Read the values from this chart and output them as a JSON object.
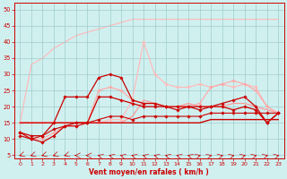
{
  "background_color": "#d0f0f0",
  "grid_color": "#a0cccc",
  "xlabel": "Vent moyen/en rafales ( km/h )",
  "xlabel_color": "#cc0000",
  "tick_color": "#cc0000",
  "xlim": [
    -0.5,
    23.5
  ],
  "ylim": [
    4,
    52
  ],
  "yticks": [
    5,
    10,
    15,
    20,
    25,
    30,
    35,
    40,
    45,
    50
  ],
  "xticks": [
    0,
    1,
    2,
    3,
    4,
    5,
    6,
    7,
    8,
    9,
    10,
    11,
    12,
    13,
    14,
    15,
    16,
    17,
    18,
    19,
    20,
    21,
    22,
    23
  ],
  "series": [
    {
      "x": [
        0,
        1,
        2,
        3,
        4,
        5,
        6,
        7,
        8,
        9,
        10,
        11,
        12,
        13,
        14,
        15,
        16,
        17,
        18,
        19,
        20,
        21,
        22,
        23
      ],
      "y": [
        15,
        33,
        35,
        38,
        40,
        42,
        43,
        44,
        45,
        46,
        47,
        47,
        47,
        47,
        47,
        47,
        47,
        47,
        47,
        47,
        47,
        47,
        47,
        47
      ],
      "color": "#ffbbbb",
      "lw": 0.9,
      "marker": null,
      "alpha": 1.0,
      "zorder": 1
    },
    {
      "x": [
        0,
        1,
        2,
        3,
        4,
        5,
        6,
        7,
        8,
        9,
        10,
        11,
        12,
        13,
        14,
        15,
        16,
        17,
        18,
        19,
        20,
        21,
        22,
        23
      ],
      "y": [
        15,
        15,
        15,
        15,
        15,
        15,
        15,
        15,
        15,
        15,
        17,
        22,
        21,
        20,
        20,
        21,
        20,
        20,
        20,
        21,
        21,
        20,
        19,
        18
      ],
      "color": "#ff9999",
      "lw": 0.9,
      "marker": null,
      "alpha": 1.0,
      "zorder": 2
    },
    {
      "x": [
        0,
        1,
        2,
        3,
        4,
        5,
        6,
        7,
        8,
        9,
        10,
        11,
        12,
        13,
        14,
        15,
        16,
        17,
        18,
        19,
        20,
        21,
        22,
        23
      ],
      "y": [
        15,
        15,
        15,
        15,
        15,
        15,
        15,
        15,
        15,
        15,
        15,
        15,
        15,
        15,
        15,
        15,
        15,
        16,
        16,
        16,
        16,
        16,
        16,
        16
      ],
      "color": "#cc0000",
      "lw": 1.0,
      "marker": null,
      "alpha": 1.0,
      "zorder": 3
    },
    {
      "x": [
        0,
        1,
        2,
        3,
        4,
        5,
        6,
        7,
        8,
        9,
        10,
        11,
        12,
        13,
        14,
        15,
        16,
        17,
        18,
        19,
        20,
        21,
        22,
        23
      ],
      "y": [
        12,
        10,
        11,
        13,
        14,
        14,
        15,
        16,
        17,
        17,
        16,
        17,
        17,
        17,
        17,
        17,
        17,
        18,
        18,
        18,
        18,
        18,
        18,
        18
      ],
      "color": "#cc0000",
      "lw": 0.8,
      "marker": "D",
      "markersize": 1.8,
      "alpha": 1.0,
      "zorder": 4
    },
    {
      "x": [
        0,
        1,
        2,
        3,
        4,
        5,
        6,
        7,
        8,
        9,
        10,
        11,
        12,
        13,
        14,
        15,
        16,
        17,
        18,
        19,
        20,
        21,
        22,
        23
      ],
      "y": [
        11,
        10,
        9,
        11,
        14,
        15,
        15,
        23,
        23,
        22,
        21,
        20,
        20,
        20,
        19,
        20,
        19,
        20,
        20,
        19,
        20,
        19,
        15,
        18
      ],
      "color": "#cc0000",
      "lw": 0.9,
      "marker": "D",
      "markersize": 1.8,
      "alpha": 1.0,
      "zorder": 5
    },
    {
      "x": [
        0,
        1,
        2,
        3,
        4,
        5,
        6,
        7,
        8,
        9,
        10,
        11,
        12,
        13,
        14,
        15,
        16,
        17,
        18,
        19,
        20,
        21,
        22,
        23
      ],
      "y": [
        12,
        11,
        11,
        15,
        23,
        23,
        23,
        29,
        30,
        29,
        22,
        21,
        21,
        20,
        20,
        20,
        20,
        20,
        21,
        22,
        23,
        20,
        15,
        18
      ],
      "color": "#cc0000",
      "lw": 0.9,
      "marker": "D",
      "markersize": 1.8,
      "alpha": 1.0,
      "zorder": 5
    },
    {
      "x": [
        0,
        1,
        2,
        3,
        4,
        5,
        6,
        7,
        8,
        9,
        10,
        11,
        12,
        13,
        14,
        15,
        16,
        17,
        18,
        19,
        20,
        21,
        22,
        23
      ],
      "y": [
        15,
        15,
        15,
        15,
        15,
        15,
        15,
        15,
        16,
        16,
        22,
        40,
        30,
        27,
        26,
        26,
        27,
        26,
        27,
        26,
        27,
        26,
        20,
        18
      ],
      "color": "#ffbbbb",
      "lw": 0.9,
      "marker": "D",
      "markersize": 1.8,
      "alpha": 1.0,
      "zorder": 2
    },
    {
      "x": [
        0,
        1,
        2,
        3,
        4,
        5,
        6,
        7,
        8,
        9,
        10,
        11,
        12,
        13,
        14,
        15,
        16,
        17,
        18,
        19,
        20,
        21,
        22,
        23
      ],
      "y": [
        12,
        10,
        10,
        12,
        14,
        14,
        15,
        25,
        26,
        25,
        22,
        21,
        21,
        20,
        20,
        20,
        21,
        26,
        27,
        28,
        27,
        25,
        20,
        18
      ],
      "color": "#ffaaaa",
      "lw": 0.9,
      "marker": "D",
      "markersize": 1.8,
      "alpha": 1.0,
      "zorder": 3
    }
  ],
  "wind_arrows_x": [
    0,
    1,
    2,
    3,
    4,
    5,
    6,
    7,
    8,
    9,
    10,
    11,
    12,
    13,
    14,
    15,
    16,
    17,
    18,
    19,
    20,
    21,
    22,
    23
  ],
  "arrow_angles": [
    225,
    225,
    225,
    225,
    225,
    270,
    270,
    315,
    315,
    315,
    315,
    315,
    315,
    315,
    315,
    315,
    45,
    45,
    45,
    45,
    45,
    45,
    45,
    45
  ]
}
